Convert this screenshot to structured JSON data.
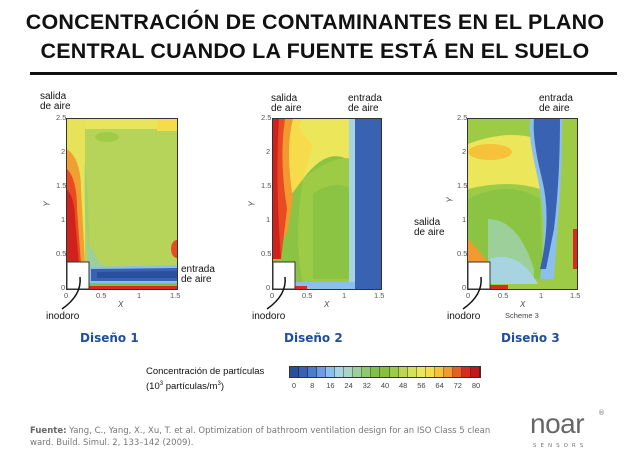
{
  "title_line1": "CONCENTRACIÓN DE CONTAMINANTES EN EL PLANO",
  "title_line2": "CENTRAL CUANDO LA FUENTE ESTÁ EN EL SUELO",
  "panels": [
    {
      "name": "Diseño 1",
      "outlet": "salida\nde aire",
      "inlet": "entrada\nde aire",
      "toilet": "inodoro",
      "xlabel": "X",
      "ylabel": "Y",
      "caption": ""
    },
    {
      "name": "Diseño 2",
      "outlet": "salida\nde aire",
      "inlet": "entrada\nde aire",
      "toilet": "inodoro",
      "xlabel": "X",
      "ylabel": "Y",
      "caption": ""
    },
    {
      "name": "Diseño 3",
      "outlet": "salida\nde aire",
      "inlet": "entrada\nde aire",
      "toilet": "inodoro",
      "xlabel": "X",
      "ylabel": "Y",
      "caption": "Scheme 3"
    }
  ],
  "x_ticks": [
    "0",
    "0.5",
    "1",
    "1.5"
  ],
  "y_ticks": [
    "0",
    "0.5",
    "1",
    "1.5",
    "2",
    "2.5"
  ],
  "colorbar": {
    "title_line1": "Concentración de partículas",
    "title_line2_pre": "(10",
    "title_line2_sup1": "3",
    "title_line2_mid": " partículas/m",
    "title_line2_sup2": "3",
    "title_line2_post": ")",
    "ticks": [
      "0",
      "8",
      "16",
      "24",
      "32",
      "40",
      "48",
      "56",
      "64",
      "72",
      "80"
    ],
    "colors": [
      "#2a4f9e",
      "#3a62b3",
      "#4d7ccc",
      "#6b9ddf",
      "#8cc0ec",
      "#a8d3e0",
      "#a9d4c6",
      "#9dcf9b",
      "#8fc86f",
      "#83c049",
      "#86c03c",
      "#9dcb46",
      "#b9d552",
      "#d4e25a",
      "#ece65a",
      "#f6dc4a",
      "#f7c23a",
      "#f29a2f",
      "#e85e23",
      "#d92a20",
      "#c1161c"
    ]
  },
  "source_label": "Fuente:",
  "source_text": " Yang, C., Yang, X., Xu, T. et al. Optimization of bathroom ventilation design for an ISO Class 5 clean ward. Build. Simul. 2, 133–142 (2009).",
  "logo": {
    "text": "noar",
    "sub": "SENSORS",
    "reg": "®"
  }
}
